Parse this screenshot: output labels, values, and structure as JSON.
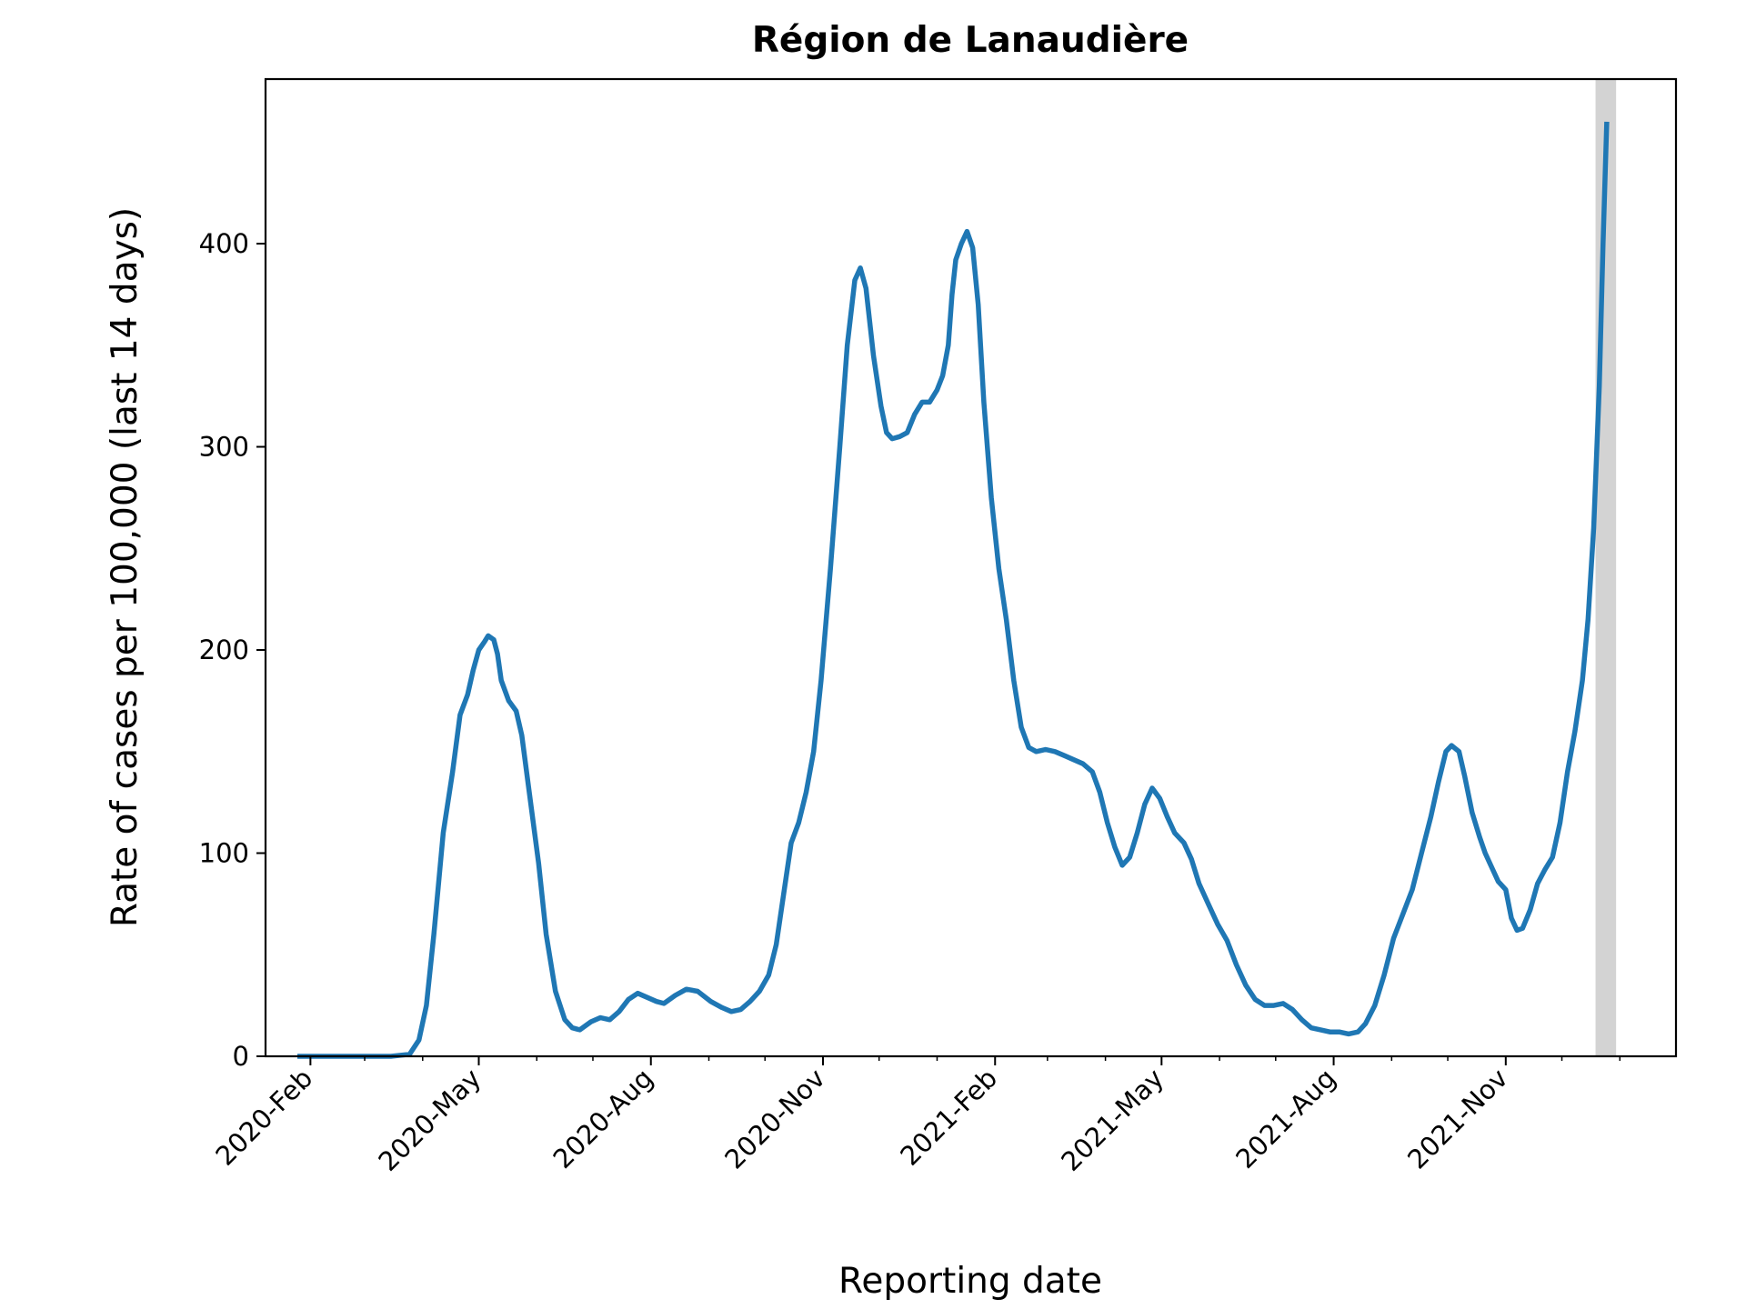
{
  "chart_data": {
    "type": "line",
    "title": "Région de Lanaudière",
    "xlabel": "Reporting date",
    "ylabel": "Rate of cases per 100,000 (last 14 days)",
    "xlim": [
      "2020-01-08",
      "2022-01-31"
    ],
    "ylim": [
      0,
      481
    ],
    "y_ticks": [
      0,
      100,
      200,
      300,
      400
    ],
    "x_ticks": [
      {
        "date": "2020-02-01",
        "label": "2020-Feb"
      },
      {
        "date": "2020-05-01",
        "label": "2020-May"
      },
      {
        "date": "2020-08-01",
        "label": "2020-Aug"
      },
      {
        "date": "2020-11-01",
        "label": "2020-Nov"
      },
      {
        "date": "2021-02-01",
        "label": "2021-Feb"
      },
      {
        "date": "2021-05-01",
        "label": "2021-May"
      },
      {
        "date": "2021-08-01",
        "label": "2021-Aug"
      },
      {
        "date": "2021-11-01",
        "label": "2021-Nov"
      }
    ],
    "minor_ticks": [
      "2020-03-01",
      "2020-04-01",
      "2020-06-01",
      "2020-07-01",
      "2020-09-01",
      "2020-10-01",
      "2020-12-01",
      "2021-01-01",
      "2021-03-01",
      "2021-04-01",
      "2021-06-01",
      "2021-07-01",
      "2021-09-01",
      "2021-10-01",
      "2021-12-01",
      "2022-01-01"
    ],
    "grid": false,
    "highlight_band": {
      "start": "2021-12-19",
      "end": "2021-12-30",
      "color": "#d3d3d3"
    },
    "series": [
      {
        "color": "#1f77b4",
        "points": [
          [
            "2020-01-25",
            0
          ],
          [
            "2020-03-15",
            0
          ],
          [
            "2020-03-25",
            1
          ],
          [
            "2020-03-30",
            8
          ],
          [
            "2020-04-03",
            25
          ],
          [
            "2020-04-07",
            60
          ],
          [
            "2020-04-12",
            110
          ],
          [
            "2020-04-17",
            140
          ],
          [
            "2020-04-21",
            168
          ],
          [
            "2020-04-25",
            178
          ],
          [
            "2020-04-28",
            190
          ],
          [
            "2020-05-01",
            200
          ],
          [
            "2020-05-04",
            204
          ],
          [
            "2020-05-06",
            207
          ],
          [
            "2020-05-09",
            205
          ],
          [
            "2020-05-11",
            198
          ],
          [
            "2020-05-13",
            185
          ],
          [
            "2020-05-17",
            175
          ],
          [
            "2020-05-21",
            170
          ],
          [
            "2020-05-24",
            158
          ],
          [
            "2020-05-28",
            130
          ],
          [
            "2020-06-02",
            95
          ],
          [
            "2020-06-06",
            60
          ],
          [
            "2020-06-11",
            32
          ],
          [
            "2020-06-16",
            18
          ],
          [
            "2020-06-20",
            14
          ],
          [
            "2020-06-24",
            13
          ],
          [
            "2020-06-30",
            17
          ],
          [
            "2020-07-05",
            19
          ],
          [
            "2020-07-10",
            18
          ],
          [
            "2020-07-15",
            22
          ],
          [
            "2020-07-20",
            28
          ],
          [
            "2020-07-25",
            31
          ],
          [
            "2020-07-30",
            29
          ],
          [
            "2020-08-04",
            27
          ],
          [
            "2020-08-08",
            26
          ],
          [
            "2020-08-14",
            30
          ],
          [
            "2020-08-20",
            33
          ],
          [
            "2020-08-26",
            32
          ],
          [
            "2020-09-02",
            27
          ],
          [
            "2020-09-08",
            24
          ],
          [
            "2020-09-13",
            22
          ],
          [
            "2020-09-18",
            23
          ],
          [
            "2020-09-23",
            27
          ],
          [
            "2020-09-28",
            32
          ],
          [
            "2020-10-03",
            40
          ],
          [
            "2020-10-07",
            55
          ],
          [
            "2020-10-11",
            80
          ],
          [
            "2020-10-15",
            105
          ],
          [
            "2020-10-19",
            115
          ],
          [
            "2020-10-23",
            130
          ],
          [
            "2020-10-27",
            150
          ],
          [
            "2020-10-31",
            185
          ],
          [
            "2020-11-05",
            240
          ],
          [
            "2020-11-10",
            300
          ],
          [
            "2020-11-14",
            350
          ],
          [
            "2020-11-18",
            382
          ],
          [
            "2020-11-21",
            388
          ],
          [
            "2020-11-24",
            378
          ],
          [
            "2020-11-28",
            345
          ],
          [
            "2020-12-02",
            320
          ],
          [
            "2020-12-05",
            307
          ],
          [
            "2020-12-08",
            304
          ],
          [
            "2020-12-12",
            305
          ],
          [
            "2020-12-16",
            307
          ],
          [
            "2020-12-20",
            316
          ],
          [
            "2020-12-24",
            322
          ],
          [
            "2020-12-28",
            322
          ],
          [
            "2021-01-01",
            328
          ],
          [
            "2021-01-04",
            335
          ],
          [
            "2021-01-07",
            350
          ],
          [
            "2021-01-09",
            375
          ],
          [
            "2021-01-11",
            392
          ],
          [
            "2021-01-14",
            400
          ],
          [
            "2021-01-17",
            406
          ],
          [
            "2021-01-20",
            398
          ],
          [
            "2021-01-23",
            370
          ],
          [
            "2021-01-26",
            322
          ],
          [
            "2021-01-30",
            275
          ],
          [
            "2021-02-03",
            240
          ],
          [
            "2021-02-07",
            215
          ],
          [
            "2021-02-11",
            185
          ],
          [
            "2021-02-15",
            162
          ],
          [
            "2021-02-19",
            152
          ],
          [
            "2021-02-23",
            150
          ],
          [
            "2021-02-28",
            151
          ],
          [
            "2021-03-05",
            150
          ],
          [
            "2021-03-10",
            148
          ],
          [
            "2021-03-15",
            146
          ],
          [
            "2021-03-20",
            144
          ],
          [
            "2021-03-25",
            140
          ],
          [
            "2021-03-29",
            130
          ],
          [
            "2021-04-02",
            115
          ],
          [
            "2021-04-06",
            103
          ],
          [
            "2021-04-10",
            94
          ],
          [
            "2021-04-14",
            98
          ],
          [
            "2021-04-18",
            110
          ],
          [
            "2021-04-22",
            124
          ],
          [
            "2021-04-26",
            132
          ],
          [
            "2021-04-30",
            127
          ],
          [
            "2021-05-04",
            118
          ],
          [
            "2021-05-08",
            110
          ],
          [
            "2021-05-13",
            105
          ],
          [
            "2021-05-17",
            97
          ],
          [
            "2021-05-21",
            85
          ],
          [
            "2021-05-26",
            75
          ],
          [
            "2021-05-31",
            65
          ],
          [
            "2021-06-05",
            57
          ],
          [
            "2021-06-10",
            45
          ],
          [
            "2021-06-15",
            35
          ],
          [
            "2021-06-20",
            28
          ],
          [
            "2021-06-25",
            25
          ],
          [
            "2021-06-30",
            25
          ],
          [
            "2021-07-05",
            26
          ],
          [
            "2021-07-10",
            23
          ],
          [
            "2021-07-15",
            18
          ],
          [
            "2021-07-20",
            14
          ],
          [
            "2021-07-25",
            13
          ],
          [
            "2021-07-30",
            12
          ],
          [
            "2021-08-04",
            12
          ],
          [
            "2021-08-09",
            11
          ],
          [
            "2021-08-14",
            12
          ],
          [
            "2021-08-18",
            16
          ],
          [
            "2021-08-23",
            25
          ],
          [
            "2021-08-28",
            40
          ],
          [
            "2021-09-02",
            58
          ],
          [
            "2021-09-07",
            70
          ],
          [
            "2021-09-12",
            82
          ],
          [
            "2021-09-17",
            100
          ],
          [
            "2021-09-22",
            118
          ],
          [
            "2021-09-26",
            135
          ],
          [
            "2021-09-30",
            150
          ],
          [
            "2021-10-03",
            153
          ],
          [
            "2021-10-07",
            150
          ],
          [
            "2021-10-10",
            138
          ],
          [
            "2021-10-14",
            120
          ],
          [
            "2021-10-18",
            108
          ],
          [
            "2021-10-21",
            100
          ],
          [
            "2021-10-25",
            92
          ],
          [
            "2021-10-28",
            86
          ],
          [
            "2021-11-01",
            82
          ],
          [
            "2021-11-04",
            68
          ],
          [
            "2021-11-07",
            62
          ],
          [
            "2021-11-10",
            63
          ],
          [
            "2021-11-14",
            72
          ],
          [
            "2021-11-18",
            85
          ],
          [
            "2021-11-22",
            92
          ],
          [
            "2021-11-26",
            98
          ],
          [
            "2021-11-30",
            115
          ],
          [
            "2021-12-04",
            140
          ],
          [
            "2021-12-08",
            160
          ],
          [
            "2021-12-12",
            185
          ],
          [
            "2021-12-15",
            215
          ],
          [
            "2021-12-18",
            260
          ],
          [
            "2021-12-21",
            330
          ],
          [
            "2021-12-23",
            400
          ],
          [
            "2021-12-25",
            460
          ]
        ]
      }
    ]
  }
}
